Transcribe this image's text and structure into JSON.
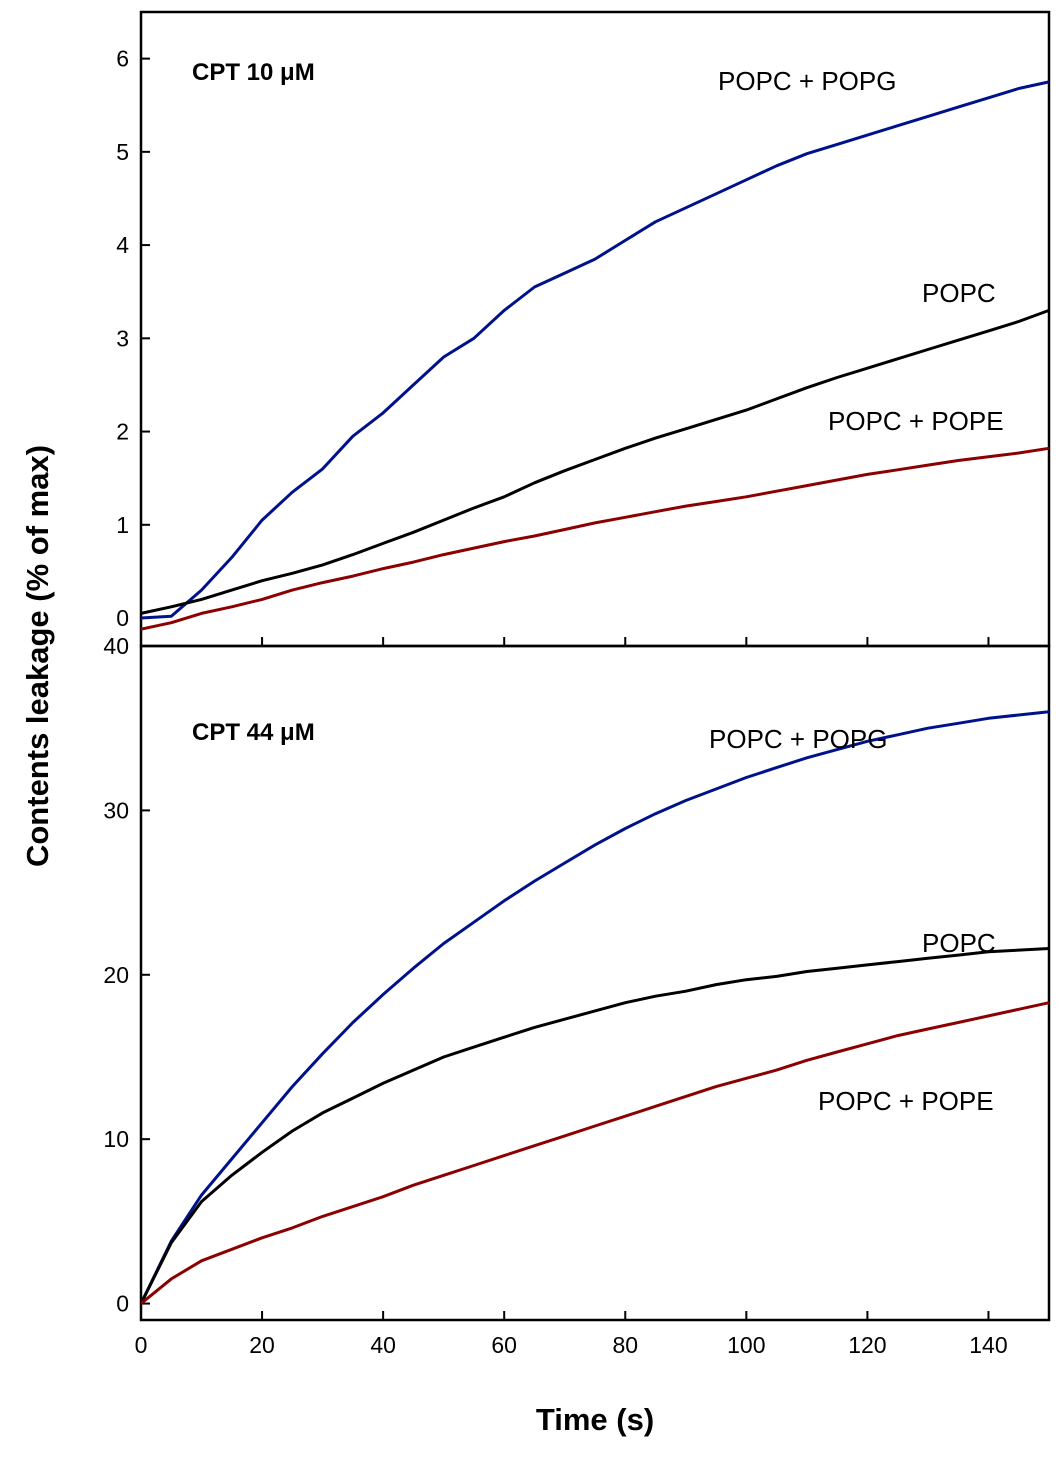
{
  "chart_data": [
    {
      "type": "line",
      "panel": "top",
      "title": "CPT 10 μM",
      "xlabel": "Time (s)",
      "ylabel": "Contents leakage (% of max)",
      "xlim": [
        0,
        150
      ],
      "ylim": [
        -0.3,
        6.5
      ],
      "xticks": [
        0,
        20,
        40,
        60,
        80,
        100,
        120,
        140
      ],
      "yticks": [
        0,
        1,
        2,
        3,
        4,
        5,
        6
      ],
      "grid": false,
      "series": [
        {
          "name": "POPC + POPG",
          "color": "#00128a",
          "x": [
            0,
            5,
            10,
            15,
            20,
            25,
            30,
            35,
            40,
            45,
            50,
            55,
            60,
            65,
            70,
            75,
            80,
            85,
            90,
            95,
            100,
            105,
            110,
            115,
            120,
            125,
            130,
            135,
            140,
            145,
            150
          ],
          "y": [
            0,
            0.02,
            0.3,
            0.65,
            1.05,
            1.35,
            1.6,
            1.95,
            2.2,
            2.5,
            2.8,
            3.0,
            3.3,
            3.55,
            3.7,
            3.85,
            4.05,
            4.25,
            4.4,
            4.55,
            4.7,
            4.85,
            4.98,
            5.08,
            5.18,
            5.28,
            5.38,
            5.48,
            5.58,
            5.68,
            5.75
          ]
        },
        {
          "name": "POPC",
          "color": "#000000",
          "x": [
            0,
            5,
            10,
            15,
            20,
            25,
            30,
            35,
            40,
            45,
            50,
            55,
            60,
            65,
            70,
            75,
            80,
            85,
            90,
            95,
            100,
            105,
            110,
            115,
            120,
            125,
            130,
            135,
            140,
            145,
            150
          ],
          "y": [
            0.05,
            0.12,
            0.2,
            0.3,
            0.4,
            0.48,
            0.57,
            0.68,
            0.8,
            0.92,
            1.05,
            1.18,
            1.3,
            1.45,
            1.58,
            1.7,
            1.82,
            1.93,
            2.03,
            2.13,
            2.23,
            2.35,
            2.47,
            2.58,
            2.68,
            2.78,
            2.88,
            2.98,
            3.08,
            3.18,
            3.3
          ]
        },
        {
          "name": "POPC + POPE",
          "color": "#8b0000",
          "x": [
            0,
            5,
            10,
            15,
            20,
            25,
            30,
            35,
            40,
            45,
            50,
            55,
            60,
            65,
            70,
            75,
            80,
            85,
            90,
            95,
            100,
            105,
            110,
            115,
            120,
            125,
            130,
            135,
            140,
            145,
            150
          ],
          "y": [
            -0.12,
            -0.05,
            0.05,
            0.12,
            0.2,
            0.3,
            0.38,
            0.45,
            0.53,
            0.6,
            0.68,
            0.75,
            0.82,
            0.88,
            0.95,
            1.02,
            1.08,
            1.14,
            1.2,
            1.25,
            1.3,
            1.36,
            1.42,
            1.48,
            1.54,
            1.59,
            1.64,
            1.69,
            1.73,
            1.77,
            1.82
          ]
        }
      ]
    },
    {
      "type": "line",
      "panel": "bottom",
      "title": "CPT 44 μM",
      "xlabel": "Time (s)",
      "ylabel": "Contents leakage (% of max)",
      "xlim": [
        0,
        150
      ],
      "ylim": [
        -1,
        40
      ],
      "xticks": [
        0,
        20,
        40,
        60,
        80,
        100,
        120,
        140
      ],
      "yticks": [
        0,
        10,
        20,
        30,
        40
      ],
      "grid": false,
      "series": [
        {
          "name": "POPC + POPG",
          "color": "#00128a",
          "x": [
            0,
            5,
            10,
            15,
            20,
            25,
            30,
            35,
            40,
            45,
            50,
            55,
            60,
            65,
            70,
            75,
            80,
            85,
            90,
            95,
            100,
            105,
            110,
            115,
            120,
            125,
            130,
            135,
            140,
            145,
            150
          ],
          "y": [
            0,
            3.8,
            6.6,
            8.8,
            11.0,
            13.2,
            15.2,
            17.1,
            18.8,
            20.4,
            21.9,
            23.2,
            24.5,
            25.7,
            26.8,
            27.9,
            28.9,
            29.8,
            30.6,
            31.3,
            32.0,
            32.6,
            33.2,
            33.7,
            34.2,
            34.6,
            35.0,
            35.3,
            35.6,
            35.8,
            36.0
          ]
        },
        {
          "name": "POPC",
          "color": "#000000",
          "x": [
            0,
            5,
            10,
            15,
            20,
            25,
            30,
            35,
            40,
            45,
            50,
            55,
            60,
            65,
            70,
            75,
            80,
            85,
            90,
            95,
            100,
            105,
            110,
            115,
            120,
            125,
            130,
            135,
            140,
            145,
            150
          ],
          "y": [
            0,
            3.7,
            6.2,
            7.8,
            9.2,
            10.5,
            11.6,
            12.5,
            13.4,
            14.2,
            15.0,
            15.6,
            16.2,
            16.8,
            17.3,
            17.8,
            18.3,
            18.7,
            19.0,
            19.4,
            19.7,
            19.9,
            20.2,
            20.4,
            20.6,
            20.8,
            21.0,
            21.2,
            21.4,
            21.5,
            21.6
          ]
        },
        {
          "name": "POPC + POPE",
          "color": "#8b0000",
          "x": [
            0,
            5,
            10,
            15,
            20,
            25,
            30,
            35,
            40,
            45,
            50,
            55,
            60,
            65,
            70,
            75,
            80,
            85,
            90,
            95,
            100,
            105,
            110,
            115,
            120,
            125,
            130,
            135,
            140,
            145,
            150
          ],
          "y": [
            0,
            1.5,
            2.6,
            3.3,
            4.0,
            4.6,
            5.3,
            5.9,
            6.5,
            7.2,
            7.8,
            8.4,
            9.0,
            9.6,
            10.2,
            10.8,
            11.4,
            12.0,
            12.6,
            13.2,
            13.7,
            14.2,
            14.8,
            15.3,
            15.8,
            16.3,
            16.7,
            17.1,
            17.5,
            17.9,
            18.3
          ]
        }
      ]
    }
  ],
  "labels": {
    "top": {
      "popg": "POPC + POPG",
      "popc": "POPC",
      "pope": "POPC + POPE"
    },
    "bottom": {
      "popg": "POPC + POPG",
      "popc": "POPC",
      "pope": "POPC + POPE"
    }
  }
}
